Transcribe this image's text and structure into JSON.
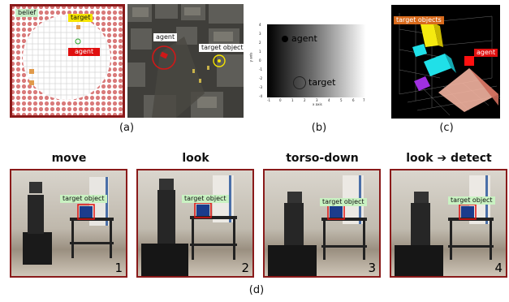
{
  "panel_a": {
    "label": "(a)",
    "belief": "belief",
    "target": "target",
    "agent": "agent",
    "city_agent": "agent",
    "city_target": "target object"
  },
  "panel_b": {
    "label": "(b)",
    "agent": "agent",
    "target": "target",
    "y_axis": "y axis",
    "x_axis": "x axis",
    "y_ticks": [
      "4",
      "3",
      "2",
      "1",
      "0",
      "-1",
      "-2",
      "-3",
      "-4"
    ],
    "x_ticks": [
      "-1",
      "0",
      "1",
      "2",
      "3",
      "4",
      "5",
      "6",
      "7"
    ]
  },
  "panel_c": {
    "label": "(c)",
    "targets": "target objects",
    "agent": "agent"
  },
  "panel_d": {
    "label": "(d)",
    "steps": [
      {
        "title": "move",
        "tag": "target object",
        "num": "1"
      },
      {
        "title": "look",
        "tag": "target object",
        "num": "2"
      },
      {
        "title": "torso-down",
        "tag": "target object",
        "num": "3"
      },
      {
        "title": "look ➔ detect",
        "tag": "target object",
        "num": "4"
      }
    ]
  },
  "colors": {
    "grid_border": "#8b1a1a",
    "dot": "#d97a7a",
    "target_yellow": "#f5e400",
    "agent_red": "#e01010",
    "belief_green": "#c8f0c8",
    "tag_green": "#c9f2c2"
  }
}
